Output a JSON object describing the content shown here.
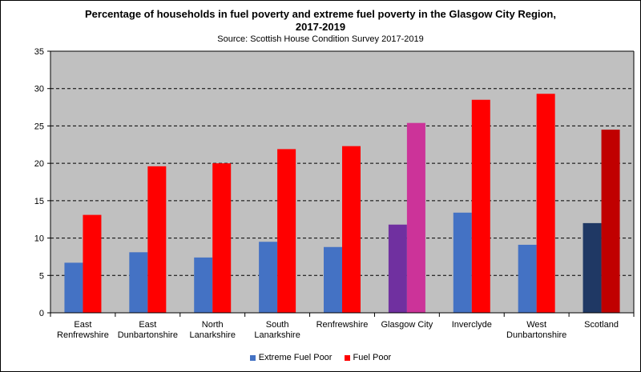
{
  "chart_data": {
    "type": "bar",
    "title_lines": [
      "Percentage of households in fuel poverty and extreme fuel poverty in the Glasgow City Region,",
      "2017-2019"
    ],
    "subtitle": "Source: Scottish House Condition Survey 2017-2019",
    "categories": [
      [
        "East",
        "Renfrewshire"
      ],
      [
        "East",
        "Dunbartonshire"
      ],
      [
        "North",
        "Lanarkshire"
      ],
      [
        "South",
        "Lanarkshire"
      ],
      [
        "Renfrewshire"
      ],
      [
        "Glasgow City"
      ],
      [
        "Inverclyde"
      ],
      [
        "West",
        "Dunbartonshire"
      ],
      [
        "Scotland"
      ]
    ],
    "series": [
      {
        "name": "Extreme Fuel Poor",
        "color": "#4472C4",
        "values": [
          6.7,
          8.1,
          7.4,
          9.5,
          8.8,
          11.8,
          13.4,
          9.1,
          12.0
        ],
        "point_colors": [
          null,
          null,
          null,
          null,
          null,
          "#7030A0",
          null,
          null,
          "#1F3864"
        ]
      },
      {
        "name": "Fuel Poor",
        "color": "#FF0000",
        "values": [
          13.1,
          19.6,
          20.0,
          21.9,
          22.3,
          25.4,
          28.5,
          29.3,
          24.5
        ],
        "point_colors": [
          null,
          null,
          null,
          null,
          null,
          "#CC3399",
          null,
          null,
          "#C00000"
        ]
      }
    ],
    "ylim": [
      0,
      35
    ],
    "yticks": [
      0,
      5,
      10,
      15,
      20,
      25,
      30,
      35
    ],
    "plot_background": "#C0C0C0",
    "grid": "dashed horizontal",
    "legend_position": "bottom"
  }
}
